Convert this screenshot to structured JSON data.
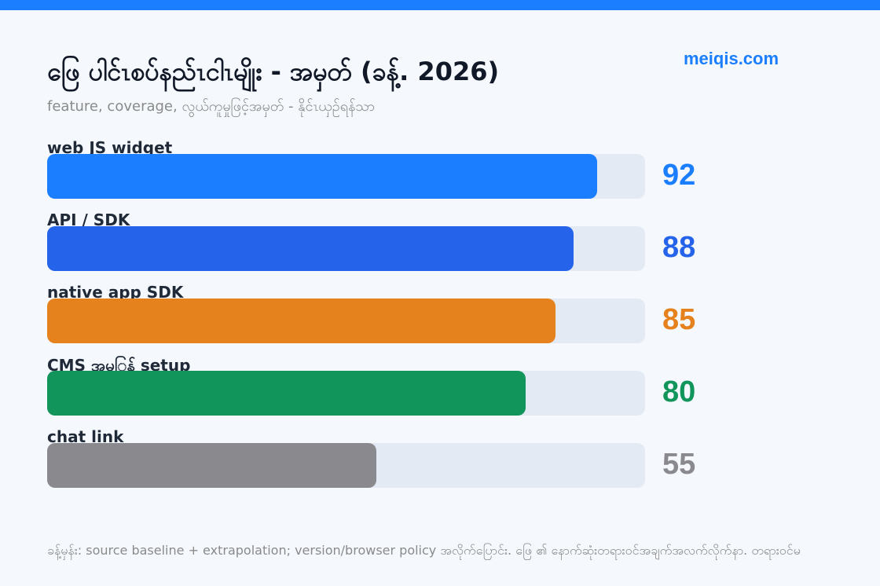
{
  "header": {
    "brand": "meiqis.com",
    "title": "ဖြေ ပါင်ၤစပ်နည်ၤငါၤမျိုး - အမှတ် (ခန့်. 2026)",
    "subtitle": "feature, coverage, လွယ်ကူမှုဖြင့်အမှတ် - နိုင်ၤယှဉ်ရန်သာ"
  },
  "colors": {
    "topbar": "#1a7eff",
    "brand": "#1a7eff"
  },
  "chart_data": {
    "type": "bar",
    "orientation": "horizontal",
    "categories": [
      "web JS widget",
      "API / SDK",
      "native app SDK",
      "CMS အမ‌ြန် setup",
      "chat link"
    ],
    "values": [
      92,
      88,
      85,
      80,
      55
    ],
    "colors": [
      "#1a7eff",
      "#2563eb",
      "#e6821e",
      "#11955a",
      "#8a898e"
    ],
    "xlim": [
      0,
      100
    ],
    "grid": false,
    "legend": "none"
  },
  "footer": {
    "note": "ခန့်မှန်း: source baseline + extrapolation; version/browser policy အလိုက်ပြောင်း. ဖြေ ၏ နောက်ဆုံးတရားဝင်အချက်အလက်လိုက်နာ. တရားဝင်မ"
  }
}
